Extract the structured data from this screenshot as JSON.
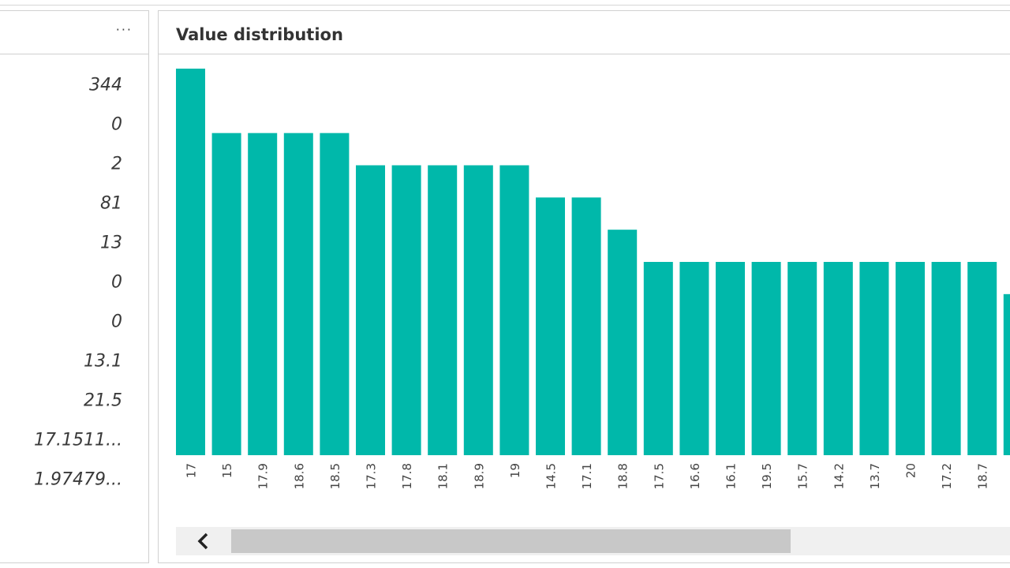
{
  "left_pane": {
    "menu_icon": "more-horizontal-icon",
    "stats": [
      "344",
      "0",
      "2",
      "81",
      "13",
      "0",
      "0",
      "13.1",
      "21.5",
      "17.1511...",
      "1.97479..."
    ]
  },
  "distribution_pane": {
    "title": "Value distribution",
    "scroll_left_icon": "chevron-left-icon",
    "scroll_thumb_fraction": 0.66
  },
  "colors": {
    "bar": "#00B8AA",
    "border": "#d0d0d0",
    "text": "#3a3a3a"
  },
  "chart_data": {
    "type": "bar",
    "categories": [
      "17",
      "15",
      "17.9",
      "18.6",
      "18.5",
      "17.3",
      "17.8",
      "18.1",
      "18.9",
      "19",
      "14.5",
      "17.1",
      "18.8",
      "17.5",
      "16.6",
      "16.1",
      "19.5",
      "15.7",
      "14.2",
      "13.7",
      "20",
      "17.2",
      "18.7"
    ],
    "values": [
      12,
      10,
      10,
      10,
      10,
      9,
      9,
      9,
      9,
      9,
      8,
      8,
      7,
      6,
      6,
      6,
      6,
      6,
      6,
      6,
      6,
      6,
      6
    ],
    "partial_next_value": 5,
    "xlabel": "",
    "ylabel": "",
    "ylim": [
      0,
      12
    ]
  }
}
